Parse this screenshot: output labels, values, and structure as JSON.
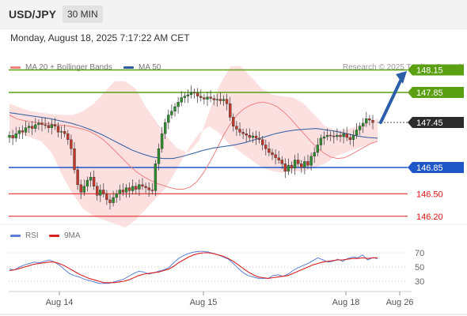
{
  "header": {
    "symbol": "USD/JPY",
    "timeframe": "30 MIN"
  },
  "datetime": "Monday, August 18, 2025 7:17:22 AM CET",
  "legend": {
    "ma20_label": "MA 20 + Bollinger Bands",
    "ma50_label": "MA 50",
    "credit": "Research © 2025 Trading Central",
    "colors": {
      "ma20": "#f08080",
      "ma50": "#2e5a9e",
      "price_up": "#2e8b2e",
      "price_down": "#c0392b"
    }
  },
  "rsi_legend": {
    "rsi_label": "RSI",
    "ma_label": "9MA",
    "colors": {
      "rsi": "#5b7fd4",
      "ma": "#d92020"
    }
  },
  "chart_data": [
    {
      "type": "line",
      "name": "price",
      "x_ticks": [
        "Aug 14",
        "Aug 15",
        "Aug 18",
        "Aug 26"
      ],
      "levels": [
        {
          "label": "148.15",
          "value": 148.15,
          "color": "#5aa012",
          "kind": "resistance"
        },
        {
          "label": "147.85",
          "value": 147.85,
          "color": "#5aa012",
          "kind": "resistance"
        },
        {
          "label": "147.45",
          "value": 147.45,
          "color": "#2b2b2b",
          "kind": "last"
        },
        {
          "label": "146.85",
          "value": 146.85,
          "color": "#1f56c8",
          "kind": "pivot"
        },
        {
          "label": "146.50",
          "value": 146.5,
          "color": "#e01010",
          "kind": "support"
        },
        {
          "label": "146.20",
          "value": 146.2,
          "color": "#e01010",
          "kind": "support"
        }
      ],
      "close": [
        147.28,
        147.24,
        147.3,
        147.34,
        147.32,
        147.38,
        147.4,
        147.37,
        147.42,
        147.44,
        147.42,
        147.41,
        147.38,
        147.42,
        147.4,
        147.32,
        147.33,
        147.3,
        147.22,
        147.1,
        146.82,
        146.62,
        146.52,
        146.6,
        146.68,
        146.72,
        146.6,
        146.48,
        146.55,
        146.5,
        146.42,
        146.38,
        146.45,
        146.5,
        146.55,
        146.52,
        146.58,
        146.54,
        146.6,
        146.56,
        146.62,
        146.6,
        146.58,
        146.55,
        146.54,
        146.9,
        147.1,
        147.3,
        147.45,
        147.55,
        147.6,
        147.66,
        147.72,
        147.78,
        147.8,
        147.82,
        147.85,
        147.84,
        147.8,
        147.78,
        147.76,
        147.79,
        147.77,
        147.75,
        147.76,
        147.74,
        147.76,
        147.7,
        147.52,
        147.4,
        147.36,
        147.32,
        147.3,
        147.28,
        147.25,
        147.27,
        147.24,
        147.22,
        147.15,
        147.1,
        147.05,
        147.02,
        146.98,
        146.95,
        146.9,
        146.8,
        146.88,
        146.84,
        146.95,
        146.9,
        146.85,
        146.93,
        146.88,
        147.0,
        147.05,
        147.15,
        147.24,
        147.26,
        147.28,
        147.27,
        147.26,
        147.28,
        147.26,
        147.3,
        147.25,
        147.22,
        147.28,
        147.35,
        147.4,
        147.44,
        147.5,
        147.48,
        147.45
      ],
      "ma20": [
        147.55,
        147.5,
        147.48,
        147.46,
        147.45,
        147.44,
        147.43,
        147.42,
        147.41,
        147.4,
        147.38,
        147.36,
        147.33,
        147.28,
        147.22,
        147.14,
        147.05,
        146.96,
        146.87,
        146.79,
        146.73,
        146.68,
        146.64,
        146.61,
        146.58,
        146.56,
        146.56,
        146.59,
        146.66,
        146.78,
        146.93,
        147.1,
        147.28,
        147.43,
        147.55,
        147.63,
        147.68,
        147.71,
        147.72,
        147.7,
        147.66,
        147.59,
        147.5,
        147.4,
        147.3,
        147.2,
        147.11,
        147.04,
        146.99,
        146.97,
        146.98,
        147.02,
        147.07,
        147.12,
        147.17,
        147.2
      ],
      "ma50": [
        147.58,
        147.56,
        147.54,
        147.52,
        147.5,
        147.47,
        147.44,
        147.4,
        147.35,
        147.29,
        147.22,
        147.15,
        147.08,
        147.03,
        146.99,
        146.97,
        146.97,
        147.0,
        147.04,
        147.08,
        147.11,
        147.13,
        147.15,
        147.18,
        147.22,
        147.26,
        147.3,
        147.33,
        147.35,
        147.36,
        147.37,
        147.35,
        147.33,
        147.3,
        147.27,
        147.25,
        147.24
      ],
      "bb_upper": [
        147.7,
        147.65,
        147.6,
        147.58,
        147.56,
        147.55,
        147.55,
        147.6,
        147.7,
        147.85,
        148.0,
        148.0,
        147.9,
        147.65,
        147.45,
        147.25,
        147.1,
        147.05,
        147.2,
        147.6,
        147.95,
        148.2,
        148.2,
        148.05,
        147.9,
        147.82,
        147.8,
        147.78,
        147.7,
        147.55,
        147.4,
        147.35,
        147.35,
        147.4,
        147.45,
        147.5
      ],
      "bb_lower": [
        147.3,
        147.3,
        147.25,
        147.2,
        147.05,
        146.75,
        146.5,
        146.3,
        146.2,
        146.15,
        146.1,
        146.05,
        146.15,
        146.3,
        146.45,
        146.6,
        146.85,
        147.1,
        147.3,
        147.4,
        147.3,
        147.15,
        147.05,
        146.95,
        146.85,
        146.8,
        146.78,
        146.8,
        146.8,
        146.85,
        146.9,
        147.0,
        147.05,
        147.1,
        147.15,
        147.2
      ]
    },
    {
      "type": "line",
      "name": "rsi",
      "y_ticks": [
        "70",
        "50",
        "30"
      ],
      "ylim": [
        15,
        85
      ],
      "rsi": [
        47,
        46,
        50,
        53,
        55,
        57,
        56,
        58,
        60,
        57,
        53,
        47,
        41,
        38,
        36,
        33,
        31,
        29,
        27,
        27,
        27,
        29,
        31,
        33,
        37,
        41,
        44,
        43,
        40,
        42,
        44,
        46,
        49,
        56,
        62,
        66,
        69,
        71,
        72,
        72,
        71,
        69,
        67,
        64,
        61,
        55,
        48,
        42,
        38,
        36,
        34,
        34,
        34,
        38,
        39,
        37,
        40,
        45,
        49,
        52,
        55,
        59,
        63,
        60,
        57,
        58,
        61,
        58,
        62,
        64,
        63,
        67,
        60,
        63,
        62
      ],
      "ma9": [
        45,
        46,
        48,
        50,
        52,
        54,
        55,
        56,
        57,
        57,
        55,
        52,
        48,
        44,
        40,
        37,
        34,
        32,
        30,
        28,
        28,
        28,
        29,
        30,
        32,
        35,
        38,
        40,
        41,
        42,
        43,
        45,
        47,
        51,
        56,
        60,
        64,
        67,
        69,
        70,
        70,
        69,
        67,
        65,
        62,
        58,
        53,
        48,
        43,
        39,
        36,
        35,
        34,
        35,
        36,
        37,
        38,
        41,
        44,
        47,
        50,
        53,
        55,
        57,
        58,
        59,
        60,
        60,
        61,
        62,
        62,
        63,
        62,
        63,
        63
      ]
    }
  ]
}
